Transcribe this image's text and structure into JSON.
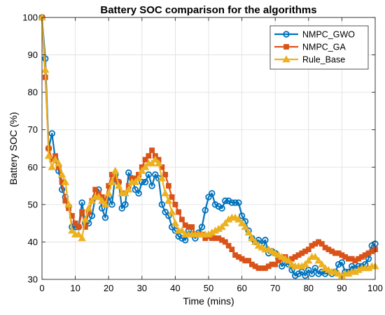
{
  "chart_data": {
    "type": "line",
    "title": "Battery SOC comparison for the algorithms",
    "xlabel": "Time (mins)",
    "ylabel": "Battery SOC (%)",
    "xlim": [
      0,
      100
    ],
    "ylim": [
      30,
      100
    ],
    "xticks": [
      0,
      10,
      20,
      30,
      40,
      50,
      60,
      70,
      80,
      90,
      100
    ],
    "yticks": [
      30,
      40,
      50,
      60,
      70,
      80,
      90,
      100
    ],
    "grid": true,
    "legend_position": "top-right",
    "series": [
      {
        "name": "NMPC_GWO",
        "color": "#0072BD",
        "marker": "circle",
        "x": [
          0,
          1,
          2,
          3,
          4,
          5,
          6,
          7,
          8,
          9,
          10,
          11,
          12,
          13,
          14,
          15,
          16,
          17,
          18,
          19,
          20,
          21,
          22,
          23,
          24,
          25,
          26,
          27,
          28,
          29,
          30,
          31,
          32,
          33,
          34,
          35,
          36,
          37,
          38,
          39,
          40,
          41,
          42,
          43,
          44,
          45,
          46,
          47,
          48,
          49,
          50,
          51,
          52,
          53,
          54,
          55,
          56,
          57,
          58,
          59,
          60,
          61,
          62,
          63,
          64,
          65,
          66,
          67,
          68,
          69,
          70,
          71,
          72,
          73,
          74,
          75,
          76,
          77,
          78,
          79,
          80,
          81,
          82,
          83,
          84,
          85,
          86,
          87,
          88,
          89,
          90,
          91,
          92,
          93,
          94,
          95,
          96,
          97,
          98,
          99,
          100
        ],
        "values": [
          100,
          89,
          65,
          69,
          62,
          59,
          54,
          52,
          49.5,
          44,
          44,
          44,
          50.5,
          45,
          45,
          47,
          52,
          54,
          49,
          46.5,
          52,
          50,
          58,
          56,
          49,
          50,
          58.5,
          57,
          54,
          53,
          56,
          56,
          58,
          55,
          58,
          57,
          50,
          48,
          47,
          44,
          43,
          41.5,
          41,
          40.5,
          43,
          42,
          41,
          42.5,
          44,
          48.5,
          52,
          53,
          50,
          49.5,
          49,
          51,
          51,
          50.5,
          50.5,
          50.5,
          47,
          45.5,
          43,
          41,
          40,
          40.5,
          39.5,
          40.5,
          37,
          37.5,
          37,
          35.5,
          33.5,
          34.5,
          34,
          32.5,
          31,
          31.5,
          32,
          31,
          32.5,
          31.5,
          33,
          31.5,
          32,
          31.5,
          32,
          31.5,
          32,
          34,
          34.5,
          32,
          32,
          33.5,
          33,
          33.5,
          33.5,
          34,
          35.5,
          39,
          39.5
        ]
      },
      {
        "name": "NMPC_GA",
        "color": "#D95319",
        "marker": "square",
        "x": [
          0,
          1,
          2,
          3,
          4,
          5,
          6,
          7,
          8,
          9,
          10,
          11,
          12,
          13,
          14,
          15,
          16,
          17,
          18,
          19,
          20,
          21,
          22,
          23,
          24,
          25,
          26,
          27,
          28,
          29,
          30,
          31,
          32,
          33,
          34,
          35,
          36,
          37,
          38,
          39,
          40,
          41,
          42,
          43,
          44,
          45,
          46,
          47,
          48,
          49,
          50,
          51,
          52,
          53,
          54,
          55,
          56,
          57,
          58,
          59,
          60,
          61,
          62,
          63,
          64,
          65,
          66,
          67,
          68,
          69,
          70,
          71,
          72,
          73,
          74,
          75,
          76,
          77,
          78,
          79,
          80,
          81,
          82,
          83,
          84,
          85,
          86,
          87,
          88,
          89,
          90,
          91,
          92,
          93,
          94,
          95,
          96,
          97,
          98,
          99,
          100
        ],
        "values": [
          100,
          84,
          65,
          62,
          63,
          60,
          56,
          51,
          49,
          47,
          45,
          44,
          48,
          44,
          48,
          51,
          54,
          53,
          52,
          51,
          55,
          58,
          57,
          56,
          53,
          53,
          55,
          57,
          57,
          58,
          60,
          62,
          63,
          64.5,
          63,
          62,
          60,
          58,
          55,
          52,
          50,
          48,
          46,
          44.5,
          44,
          44,
          42,
          42,
          42,
          41,
          41.5,
          41,
          41,
          41,
          40.5,
          40,
          39,
          38,
          36.5,
          36,
          35.5,
          35,
          35,
          34,
          33.5,
          33,
          33,
          33,
          33.5,
          34,
          34,
          35,
          35.5,
          36,
          35,
          35.5,
          36,
          36.5,
          37,
          37.5,
          38,
          39,
          39.5,
          40,
          39.5,
          38.5,
          38,
          37.5,
          37,
          37,
          36.5,
          36,
          35.5,
          35.5,
          35,
          35.5,
          36,
          36.5,
          37,
          37.5,
          38
        ]
      },
      {
        "name": "Rule_Base",
        "color": "#EDB120",
        "marker": "triangle",
        "x": [
          0,
          1,
          2,
          3,
          4,
          5,
          6,
          7,
          8,
          9,
          10,
          11,
          12,
          13,
          14,
          15,
          16,
          17,
          18,
          19,
          20,
          21,
          22,
          23,
          24,
          25,
          26,
          27,
          28,
          29,
          30,
          31,
          32,
          33,
          34,
          35,
          36,
          37,
          38,
          39,
          40,
          41,
          42,
          43,
          44,
          45,
          46,
          47,
          48,
          49,
          50,
          51,
          52,
          53,
          54,
          55,
          56,
          57,
          58,
          59,
          60,
          61,
          62,
          63,
          64,
          65,
          66,
          67,
          68,
          69,
          70,
          71,
          72,
          73,
          74,
          75,
          76,
          77,
          78,
          79,
          80,
          81,
          82,
          83,
          84,
          85,
          86,
          87,
          88,
          89,
          90,
          91,
          92,
          93,
          94,
          95,
          96,
          97,
          98,
          99,
          100
        ],
        "values": [
          100,
          86,
          63,
          60,
          62,
          61,
          58,
          56,
          50,
          43,
          42,
          42,
          41,
          46,
          49,
          51,
          52,
          52,
          51,
          50,
          53,
          56,
          59,
          55,
          53,
          53,
          54,
          56,
          56,
          57,
          59,
          60,
          61,
          61,
          62,
          61,
          57,
          53,
          51,
          48,
          45,
          43,
          43,
          42,
          42,
          42,
          42,
          42,
          42,
          42,
          42,
          42.5,
          43,
          43.5,
          44,
          45,
          46,
          46.5,
          46.5,
          46,
          45,
          44,
          42.5,
          41,
          40,
          39,
          38.5,
          38,
          38,
          37.5,
          37,
          36.5,
          36,
          35.5,
          35,
          34,
          33.5,
          33.5,
          33.5,
          34,
          35,
          36,
          36,
          35,
          34,
          33,
          32.5,
          32,
          32,
          31.5,
          31,
          31.5,
          31.5,
          32,
          32,
          32.5,
          33,
          33,
          33,
          33.5,
          33.5
        ]
      }
    ]
  }
}
